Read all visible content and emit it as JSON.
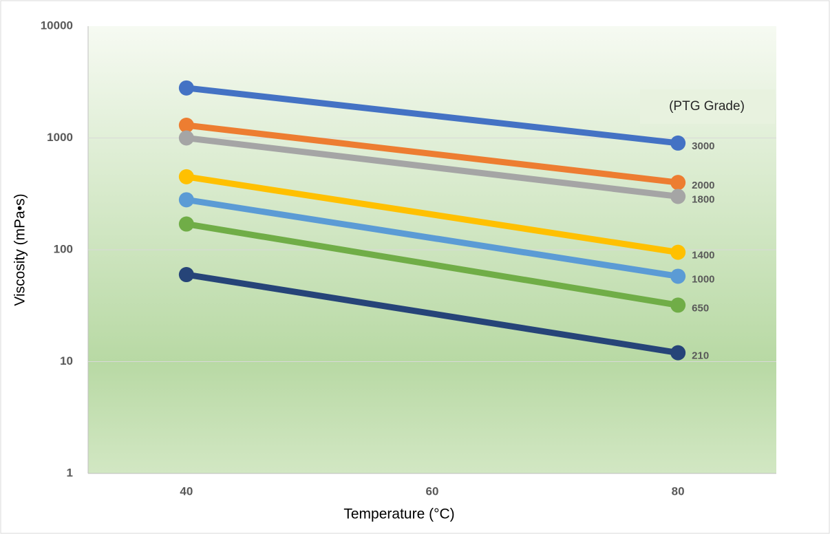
{
  "chart_data": {
    "type": "line",
    "x_label": "Temperature (°C)",
    "y_label": "Viscosity (mPa•s)",
    "legend_title": "(PTG Grade)",
    "x": [
      40,
      80
    ],
    "xlim": [
      32,
      88
    ],
    "xticks": [
      40,
      60,
      80
    ],
    "ylim": [
      1,
      10000
    ],
    "yticks": [
      1,
      10,
      100,
      1000,
      10000
    ],
    "log_scale": true,
    "grid": true,
    "series": [
      {
        "name": "3000",
        "color": "#4472c4",
        "values": [
          2800,
          900
        ]
      },
      {
        "name": "2000",
        "color": "#ed7d31",
        "values": [
          1300,
          400
        ]
      },
      {
        "name": "1800",
        "color": "#a5a5a5",
        "values": [
          1000,
          300
        ]
      },
      {
        "name": "1400",
        "color": "#ffc000",
        "values": [
          450,
          95
        ]
      },
      {
        "name": "1000",
        "color": "#5b9bd5",
        "values": [
          280,
          58
        ]
      },
      {
        "name": "650",
        "color": "#70ad47",
        "values": [
          170,
          32
        ]
      },
      {
        "name": "210",
        "color": "#264478",
        "values": [
          60,
          12
        ]
      }
    ]
  }
}
